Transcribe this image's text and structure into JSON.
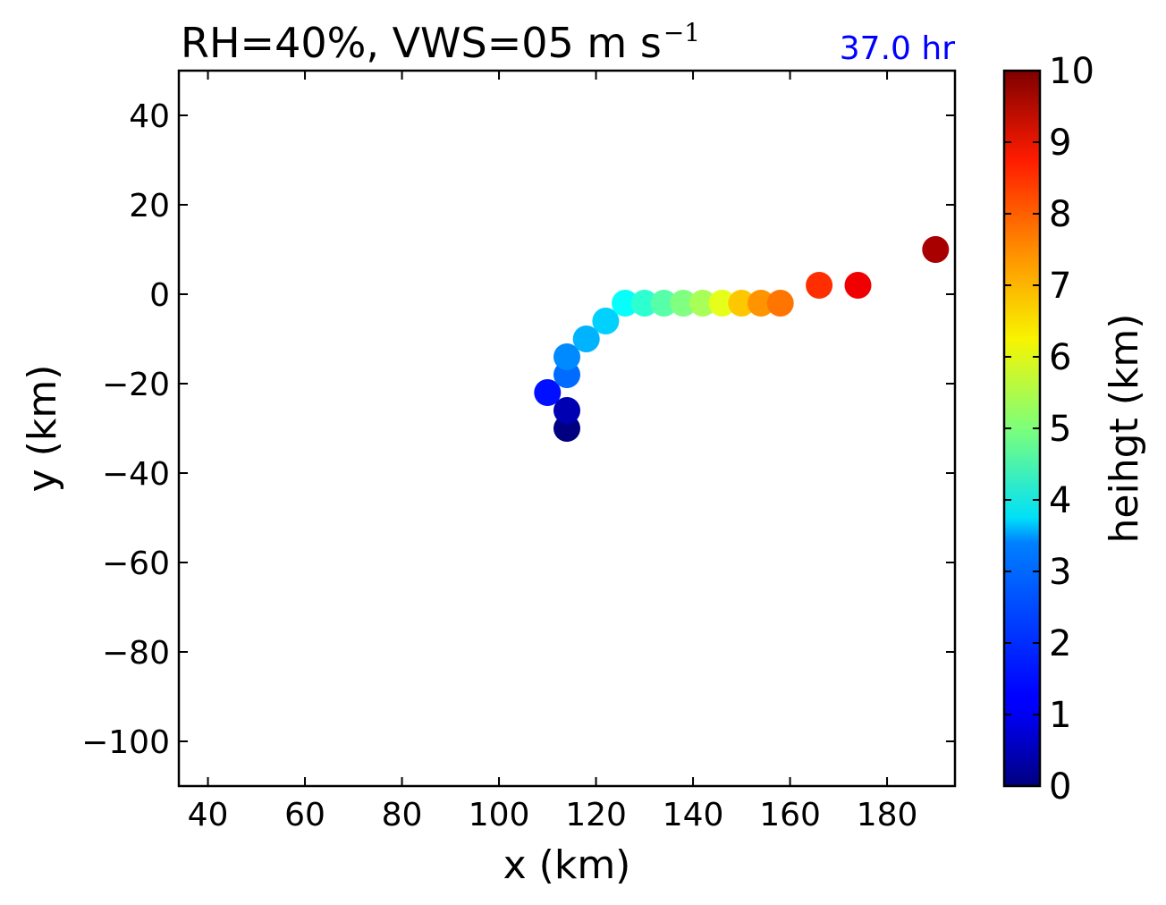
{
  "chart_data": {
    "type": "scatter",
    "title": {
      "main": "RH=40%, VWS=05 m s",
      "superscript": "−1"
    },
    "annotation": {
      "text": "37.0 hr",
      "color": "#0000ff"
    },
    "xlabel": "x (km)",
    "ylabel": "y (km)",
    "xlim": [
      34,
      194
    ],
    "ylim": [
      -110,
      50
    ],
    "xticks": [
      40,
      60,
      80,
      100,
      120,
      140,
      160,
      180
    ],
    "yticks": [
      40,
      20,
      0,
      -20,
      -40,
      -60,
      -80,
      -100
    ],
    "xtick_labels": [
      "40",
      "60",
      "80",
      "100",
      "120",
      "140",
      "160",
      "180"
    ],
    "ytick_labels": [
      "40",
      "20",
      "0",
      "−20",
      "−40",
      "−60",
      "−80",
      "−100"
    ],
    "grid": false,
    "colormap": "jet",
    "colorbar": {
      "label": "heihgt (km)",
      "range": [
        0,
        10
      ],
      "ticks": [
        0,
        1,
        2,
        3,
        4,
        5,
        6,
        7,
        8,
        9,
        10
      ],
      "tick_labels": [
        "0",
        "1",
        "2",
        "3",
        "4",
        "5",
        "6",
        "7",
        "8",
        "9",
        "10"
      ]
    },
    "points": [
      {
        "x": 114,
        "y": -30,
        "height": 0.0
      },
      {
        "x": 114,
        "y": -26,
        "height": 0.5
      },
      {
        "x": 110,
        "y": -22,
        "height": 1.4
      },
      {
        "x": 114,
        "y": -18,
        "height": 2.3
      },
      {
        "x": 114,
        "y": -14,
        "height": 2.6
      },
      {
        "x": 118,
        "y": -10,
        "height": 3.0
      },
      {
        "x": 122,
        "y": -6,
        "height": 3.3
      },
      {
        "x": 126,
        "y": -2,
        "height": 3.8
      },
      {
        "x": 130,
        "y": -2,
        "height": 4.2
      },
      {
        "x": 134,
        "y": -2,
        "height": 4.6
      },
      {
        "x": 138,
        "y": -2,
        "height": 5.0
      },
      {
        "x": 142,
        "y": -2,
        "height": 5.4
      },
      {
        "x": 146,
        "y": -2,
        "height": 6.0
      },
      {
        "x": 150,
        "y": -2,
        "height": 6.8
      },
      {
        "x": 154,
        "y": -2,
        "height": 7.3
      },
      {
        "x": 158,
        "y": -2,
        "height": 7.6
      },
      {
        "x": 166,
        "y": 2,
        "height": 8.3
      },
      {
        "x": 174,
        "y": 2,
        "height": 8.9
      },
      {
        "x": 190,
        "y": 10,
        "height": 9.6
      }
    ]
  }
}
